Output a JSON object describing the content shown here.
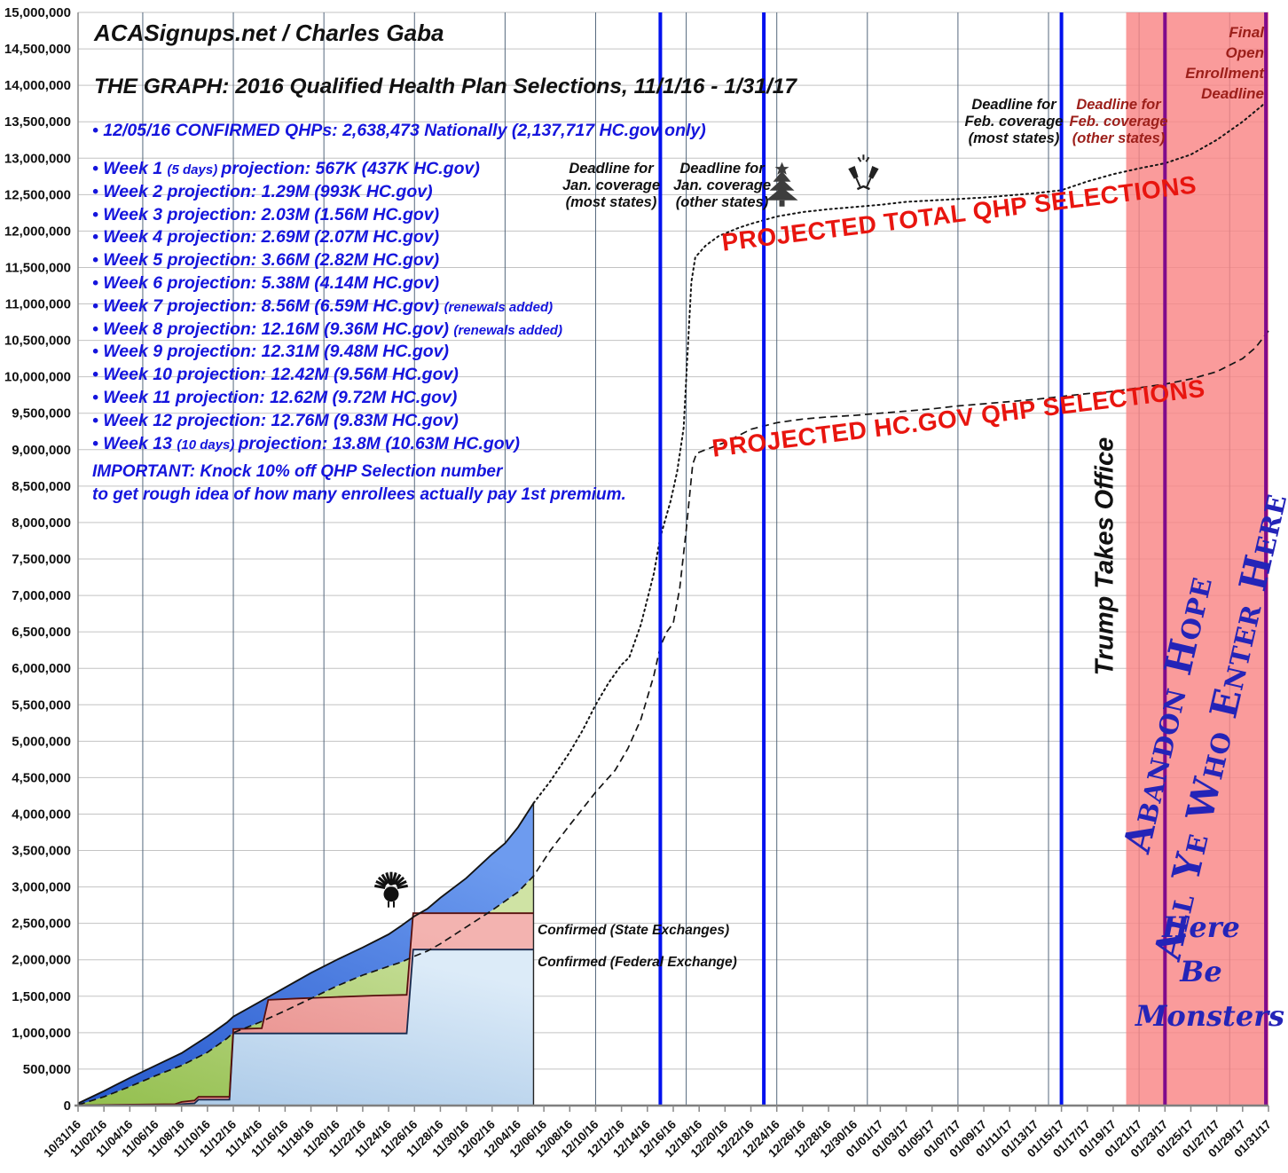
{
  "header": {
    "site": "ACASignups.net / Charles Gaba",
    "title": "THE GRAPH: 2016 Qualified Health Plan Selections, 11/1/16 - 1/31/17"
  },
  "confirmed_note": "• 12/05/16 CONFIRMED QHPs: 2,638,473 Nationally (2,137,717 HC.gov only)",
  "weeks": [
    {
      "parts": [
        {
          "text": "• Week 1 ",
          "small": false
        },
        {
          "text": "(5 days) ",
          "small": true
        },
        {
          "text": "projection: 567K (437K HC.gov)",
          "small": false
        }
      ]
    },
    {
      "parts": [
        {
          "text": "• Week 2 projection: 1.29M (993K HC.gov)",
          "small": false
        }
      ]
    },
    {
      "parts": [
        {
          "text": "• Week 3 projection: 2.03M (1.56M HC.gov)",
          "small": false
        }
      ]
    },
    {
      "parts": [
        {
          "text": "• Week 4 projection: 2.69M (2.07M HC.gov)",
          "small": false
        }
      ]
    },
    {
      "parts": [
        {
          "text": "• Week 5 projection: 3.66M (2.82M HC.gov)",
          "small": false
        }
      ]
    },
    {
      "parts": [
        {
          "text": "• Week 6 projection: 5.38M (4.14M HC.gov)",
          "small": false
        }
      ]
    },
    {
      "parts": [
        {
          "text": "• Week 7 projection: 8.56M (6.59M HC.gov) ",
          "small": false
        },
        {
          "text": "(renewals added)",
          "small": true
        }
      ]
    },
    {
      "parts": [
        {
          "text": "• Week 8 projection: 12.16M (9.36M HC.gov) ",
          "small": false
        },
        {
          "text": "(renewals added)",
          "small": true
        }
      ]
    },
    {
      "parts": [
        {
          "text": "• Week 9 projection: 12.31M (9.48M HC.gov)",
          "small": false
        }
      ]
    },
    {
      "parts": [
        {
          "text": "• Week 10 projection: 12.42M (9.56M HC.gov)",
          "small": false
        }
      ]
    },
    {
      "parts": [
        {
          "text": "• Week 11 projection: 12.62M (9.72M HC.gov)",
          "small": false
        }
      ]
    },
    {
      "parts": [
        {
          "text": "• Week 12 projection: 12.76M (9.83M HC.gov)",
          "small": false
        }
      ]
    },
    {
      "parts": [
        {
          "text": "• Week 13 ",
          "small": false
        },
        {
          "text": "(10 days) ",
          "small": true
        },
        {
          "text": "projection: 13.8M (10.63M HC.gov)",
          "small": false
        }
      ]
    }
  ],
  "important_note": [
    "IMPORTANT: Knock 10% off QHP Selection number",
    "to get rough idea of how many enrollees actually pay 1st premium."
  ],
  "labels": {
    "projected_total": "PROJECTED TOTAL QHP SELECTIONS",
    "projected_hcgov": "PROJECTED HC.GOV QHP SELECTIONS",
    "confirmed_state": "Confirmed (State Exchanges)",
    "confirmed_federal": "Confirmed (Federal Exchange)",
    "trump": "Trump Takes Office",
    "abandon_hope": [
      "Abandon Hope",
      "All Ye Who Enter Here"
    ],
    "here_be_monsters": [
      "Here",
      "Be",
      "Monsters"
    ],
    "final_deadline": [
      "Final",
      "Open",
      "Enrollment",
      "Deadline"
    ],
    "deadline_jan_most": [
      "Deadline for",
      "Jan. coverage",
      "(most states)"
    ],
    "deadline_jan_other": [
      "Deadline for",
      "Jan. coverage",
      "(other states)"
    ],
    "deadline_feb_most": [
      "Deadline for",
      "Feb. coverage",
      "(most states)"
    ],
    "deadline_feb_other": [
      "Deadline for",
      "Feb. coverage",
      "(other states)"
    ]
  },
  "colors": {
    "blue_text": "#1515dd",
    "red_label": "#e8150f",
    "dark_red": "#9c1f1a",
    "navy": "#2424b8",
    "deadline_line_blue": "#0011ee",
    "deadline_line_purple": "#800b8c",
    "red_zone": "#f98585",
    "area_green": "#a8cc62",
    "area_blue": "#3366dd",
    "area_salmon": "#ec9a97",
    "area_lightblue": "#b3cce9"
  },
  "chart_data": {
    "type": "line",
    "title": "2016 Qualified Health Plan Selections, 11/1/16 - 1/31/17",
    "units": "QHP selections (values stored in millions)",
    "x_axis": {
      "unit": "days since 10/31/16",
      "range": [
        0,
        92
      ],
      "tick_step_days": 2,
      "tick_labels": [
        "10/31/16",
        "11/02/16",
        "11/04/16",
        "11/06/16",
        "11/08/16",
        "11/10/16",
        "11/12/16",
        "11/14/16",
        "11/16/16",
        "11/18/16",
        "11/20/16",
        "11/22/16",
        "11/24/16",
        "11/26/16",
        "11/28/16",
        "11/30/16",
        "12/02/16",
        "12/04/16",
        "12/06/16",
        "12/08/16",
        "12/10/16",
        "12/12/16",
        "12/14/16",
        "12/16/16",
        "12/18/16",
        "12/20/16",
        "12/22/16",
        "12/24/16",
        "12/26/16",
        "12/28/16",
        "12/30/16",
        "01/01/17",
        "01/03/17",
        "01/05/17",
        "01/07/17",
        "01/09/17",
        "01/11/17",
        "01/13/17",
        "01/15/17",
        "01/17/17",
        "01/19/17",
        "01/21/17",
        "01/23/17",
        "01/25/17",
        "01/27/17",
        "01/29/17",
        "01/31/17"
      ],
      "weekly_gridline_days": [
        5,
        12,
        19,
        26,
        33,
        40,
        47,
        54,
        61,
        68,
        75,
        82,
        89
      ]
    },
    "y_axis": {
      "min": 0,
      "max": 15000000,
      "step": 500000,
      "grid": true
    },
    "fill_cutoff_day": 35.2,
    "series": [
      {
        "id": "projected_total",
        "name": "Projected Total QHP Selections",
        "style": "dotted-line",
        "points": [
          [
            0,
            0.03
          ],
          [
            2,
            0.2
          ],
          [
            4,
            0.38
          ],
          [
            6,
            0.55
          ],
          [
            8,
            0.72
          ],
          [
            10,
            0.95
          ],
          [
            11.5,
            1.14
          ],
          [
            12,
            1.22
          ],
          [
            14,
            1.42
          ],
          [
            15,
            1.52
          ],
          [
            16,
            1.62
          ],
          [
            18,
            1.82
          ],
          [
            20,
            2.0
          ],
          [
            22,
            2.17
          ],
          [
            24,
            2.35
          ],
          [
            25,
            2.47
          ],
          [
            26,
            2.6
          ],
          [
            27,
            2.7
          ],
          [
            28,
            2.85
          ],
          [
            30,
            3.12
          ],
          [
            32,
            3.45
          ],
          [
            33,
            3.6
          ],
          [
            34,
            3.82
          ],
          [
            35.2,
            4.15
          ],
          [
            36.5,
            4.45
          ],
          [
            38,
            4.85
          ],
          [
            39,
            5.15
          ],
          [
            40,
            5.5
          ],
          [
            41,
            5.8
          ],
          [
            42,
            6.05
          ],
          [
            42.6,
            6.15
          ],
          [
            43.5,
            6.6
          ],
          [
            44.5,
            7.3
          ],
          [
            45,
            7.8
          ],
          [
            45.8,
            8.3
          ],
          [
            46.3,
            8.7
          ],
          [
            46.8,
            9.3
          ],
          [
            47.1,
            10.3
          ],
          [
            47.4,
            11.3
          ],
          [
            47.7,
            11.64
          ],
          [
            48.5,
            11.8
          ],
          [
            49.5,
            11.93
          ],
          [
            51,
            12.04
          ],
          [
            52,
            12.1
          ],
          [
            54,
            12.2
          ],
          [
            56,
            12.26
          ],
          [
            58,
            12.3
          ],
          [
            60,
            12.33
          ],
          [
            62,
            12.36
          ],
          [
            64,
            12.4
          ],
          [
            66,
            12.42
          ],
          [
            68,
            12.44
          ],
          [
            70,
            12.46
          ],
          [
            72,
            12.49
          ],
          [
            74,
            12.52
          ],
          [
            76,
            12.56
          ],
          [
            78,
            12.68
          ],
          [
            80,
            12.78
          ],
          [
            82,
            12.86
          ],
          [
            84,
            12.93
          ],
          [
            86,
            13.05
          ],
          [
            88,
            13.25
          ],
          [
            90,
            13.5
          ],
          [
            91.5,
            13.72
          ],
          [
            92,
            13.82
          ]
        ]
      },
      {
        "id": "projected_hcgov",
        "name": "Projected HC.gov QHP Selections",
        "style": "dashed-line",
        "points": [
          [
            0,
            0.01
          ],
          [
            2,
            0.12
          ],
          [
            4,
            0.26
          ],
          [
            6,
            0.41
          ],
          [
            8,
            0.55
          ],
          [
            10,
            0.73
          ],
          [
            11.5,
            0.92
          ],
          [
            12,
            1.0
          ],
          [
            14,
            1.14
          ],
          [
            15,
            1.22
          ],
          [
            16,
            1.3
          ],
          [
            18,
            1.47
          ],
          [
            20,
            1.64
          ],
          [
            22,
            1.79
          ],
          [
            24,
            1.91
          ],
          [
            25,
            1.97
          ],
          [
            26,
            2.05
          ],
          [
            27,
            2.12
          ],
          [
            28,
            2.22
          ],
          [
            30,
            2.45
          ],
          [
            32,
            2.68
          ],
          [
            34,
            2.93
          ],
          [
            35.2,
            3.15
          ],
          [
            36.5,
            3.5
          ],
          [
            38,
            3.85
          ],
          [
            40,
            4.3
          ],
          [
            41.5,
            4.6
          ],
          [
            42.5,
            4.9
          ],
          [
            43.5,
            5.3
          ],
          [
            44.5,
            5.9
          ],
          [
            45,
            6.3
          ],
          [
            45.5,
            6.5
          ],
          [
            46,
            6.62
          ],
          [
            46.5,
            7.1
          ],
          [
            47,
            7.9
          ],
          [
            47.5,
            8.8
          ],
          [
            47.8,
            8.95
          ],
          [
            48.5,
            9.0
          ],
          [
            50,
            9.1
          ],
          [
            52,
            9.28
          ],
          [
            54,
            9.37
          ],
          [
            56,
            9.42
          ],
          [
            58,
            9.45
          ],
          [
            60,
            9.47
          ],
          [
            62,
            9.5
          ],
          [
            64,
            9.53
          ],
          [
            66,
            9.56
          ],
          [
            68,
            9.6
          ],
          [
            70,
            9.63
          ],
          [
            72,
            9.66
          ],
          [
            74,
            9.69
          ],
          [
            76,
            9.73
          ],
          [
            78,
            9.77
          ],
          [
            80,
            9.8
          ],
          [
            82,
            9.85
          ],
          [
            84,
            9.9
          ],
          [
            86,
            9.97
          ],
          [
            88,
            10.07
          ],
          [
            90,
            10.25
          ],
          [
            91,
            10.4
          ],
          [
            92,
            10.63
          ]
        ]
      },
      {
        "id": "confirmed_national",
        "name": "Confirmed (State Exchanges)",
        "style": "area-salmon",
        "points": [
          [
            0,
            0.005
          ],
          [
            7.5,
            0.02
          ],
          [
            8,
            0.05
          ],
          [
            9,
            0.07
          ],
          [
            9.3,
            0.12
          ],
          [
            11.7,
            0.12
          ],
          [
            12,
            1.05
          ],
          [
            14.2,
            1.06
          ],
          [
            14.7,
            1.45
          ],
          [
            17,
            1.47
          ],
          [
            20,
            1.49
          ],
          [
            23,
            1.51
          ],
          [
            25.4,
            1.52
          ],
          [
            25.9,
            2.64
          ],
          [
            35.2,
            2.64
          ]
        ]
      },
      {
        "id": "confirmed_federal",
        "name": "Confirmed (Federal Exchange)",
        "style": "area-lightblue",
        "points": [
          [
            0,
            0.0
          ],
          [
            7.5,
            0.005
          ],
          [
            8,
            0.02
          ],
          [
            9,
            0.03
          ],
          [
            9.3,
            0.08
          ],
          [
            11.7,
            0.08
          ],
          [
            12,
            0.99
          ],
          [
            25.4,
            0.99
          ],
          [
            25.9,
            2.14
          ],
          [
            35.2,
            2.14
          ]
        ]
      }
    ],
    "annotations": {
      "confirmed_values": {
        "national": 2638473,
        "hcgov": 2137717,
        "as_of": "12/05/16"
      },
      "final_projection": {
        "total_millions": 13.8,
        "hcgov_millions": 10.63
      }
    },
    "vertical_lines": [
      {
        "day": 45,
        "color": "#0011ee",
        "width": 4,
        "name": "jan-coverage-most-states"
      },
      {
        "day": 53,
        "color": "#0011ee",
        "width": 4,
        "name": "jan-coverage-other-states"
      },
      {
        "day": 76,
        "color": "#0011ee",
        "width": 4,
        "name": "feb-coverage-most-states"
      },
      {
        "day": 84,
        "color": "#800b8c",
        "width": 4,
        "name": "feb-coverage-other-states"
      },
      {
        "day": 91.8,
        "color": "#800b8c",
        "width": 4,
        "name": "final-open-enrollment-deadline"
      }
    ],
    "red_zone": {
      "start_day": 81,
      "end_day": 92
    },
    "icons": [
      {
        "name": "turkey-icon",
        "day": 24.2,
        "value_millions": 2.95
      },
      {
        "name": "christmas-tree-icon",
        "day": 54.4,
        "value_millions": 12.58
      },
      {
        "name": "champagne-glasses-icon",
        "day": 60.7,
        "value_millions": 12.72
      }
    ]
  }
}
